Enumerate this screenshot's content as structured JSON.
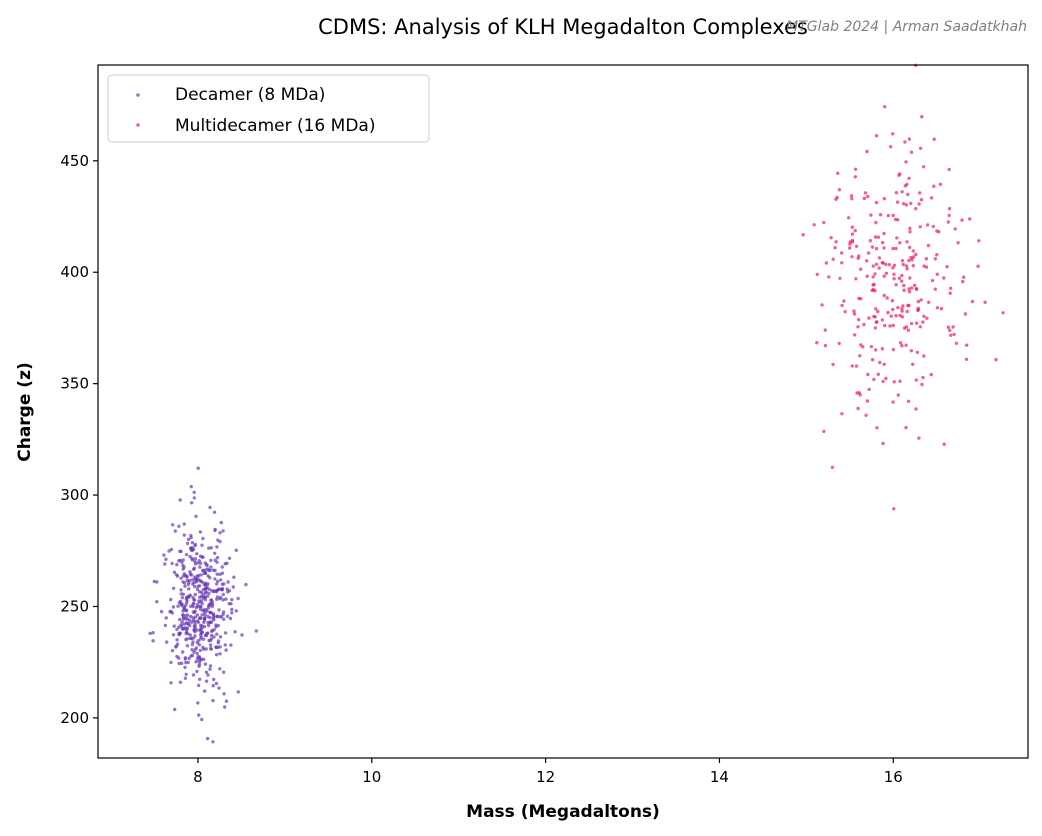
{
  "chart_data": {
    "type": "scatter",
    "title": "CDMS: Analysis of KLH Megadalton Complexes",
    "watermark": "MTGlab 2024 | Arman Saadatkhah",
    "xlabel": "Mass (Megadaltons)",
    "ylabel": "Charge (z)",
    "xlim": [
      6.85,
      17.55
    ],
    "ylim": [
      182,
      493
    ],
    "xticks": [
      8,
      10,
      12,
      14,
      16
    ],
    "yticks": [
      200,
      250,
      300,
      350,
      400,
      450
    ],
    "grid": false,
    "legend_position": "top-left",
    "series": [
      {
        "name": "Decamer (8 MDa)",
        "color": "#673ab7",
        "distribution": {
          "count": 500,
          "mass_mean": 8.0,
          "mass_sd": 0.2,
          "charge_mean": 250,
          "charge_sd": 20
        }
      },
      {
        "name": "Multidecamer (16 MDa)",
        "color": "#e91e63",
        "distribution": {
          "count": 300,
          "mass_mean": 16.0,
          "mass_sd": 0.4,
          "charge_mean": 395,
          "charge_sd": 30
        }
      }
    ]
  }
}
